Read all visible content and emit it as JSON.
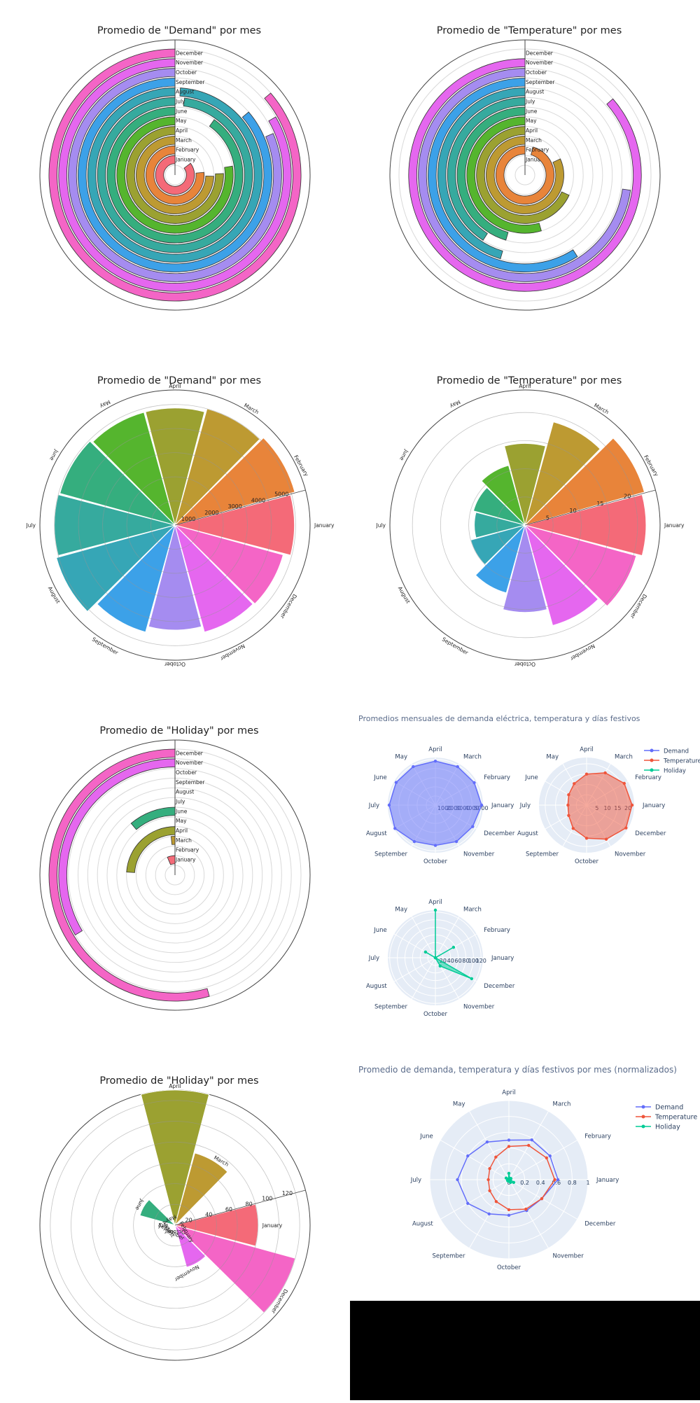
{
  "months": [
    "January",
    "February",
    "March",
    "April",
    "May",
    "June",
    "July",
    "August",
    "September",
    "October",
    "November",
    "December"
  ],
  "month_colors": [
    "#f46a78",
    "#e8843a",
    "#bd9a32",
    "#9ba131",
    "#55b52e",
    "#35ae7e",
    "#36aa9e",
    "#36a6b6",
    "#3ca1e8",
    "#a58cf0",
    "#e567ef",
    "#f465c6"
  ],
  "chart_data": [
    {
      "type": "bar",
      "variant": "polar-barpolar-angular",
      "title": "Promedio de \"Demand\" por mes",
      "categories": [
        "January",
        "February",
        "March",
        "April",
        "May",
        "June",
        "July",
        "August",
        "September",
        "October",
        "November",
        "December"
      ],
      "values": [
        4350,
        3900,
        3800,
        3850,
        3950,
        4600,
        5000,
        5050,
        4400,
        4150,
        4250,
        4400
      ],
      "radial_range": [
        0,
        5100
      ]
    },
    {
      "type": "bar",
      "variant": "polar-barpolar-angular",
      "title": "Promedio de \"Temperature\" por mes",
      "categories": [
        "January",
        "February",
        "March",
        "April",
        "May",
        "June",
        "July",
        "August",
        "September",
        "October",
        "November",
        "December"
      ],
      "values": [
        22,
        21,
        18,
        15,
        12,
        10,
        9,
        10,
        13,
        16,
        19,
        22
      ],
      "radial_range": [
        0,
        22
      ]
    },
    {
      "type": "bar",
      "variant": "polar-barpolar-radial",
      "title": "Promedio de \"Demand\" por mes",
      "categories": [
        "January",
        "February",
        "March",
        "April",
        "May",
        "June",
        "July",
        "August",
        "September",
        "October",
        "November",
        "December"
      ],
      "values": [
        4950,
        5150,
        5000,
        4850,
        4850,
        4950,
        5000,
        5100,
        4600,
        4350,
        4600,
        4650
      ],
      "radial_range": [
        0,
        5600
      ],
      "radial_ticks": [
        1000,
        2000,
        3000,
        4000,
        5000
      ]
    },
    {
      "type": "bar",
      "variant": "polar-barpolar-radial",
      "title": "Promedio de \"Temperature\" por mes",
      "categories": [
        "January",
        "February",
        "March",
        "April",
        "May",
        "June",
        "July",
        "August",
        "September",
        "October",
        "November",
        "December"
      ],
      "values": [
        21.5,
        22,
        19,
        14.5,
        11,
        9.5,
        9,
        10,
        12.5,
        15.5,
        18.5,
        20.5
      ],
      "radial_range": [
        0,
        24
      ],
      "radial_ticks": [
        5,
        10,
        15,
        20
      ]
    },
    {
      "type": "bar",
      "variant": "polar-barpolar-angular",
      "title": "Promedio de \"Holiday\" por mes",
      "categories": [
        "January",
        "February",
        "March",
        "April",
        "May",
        "June",
        "July",
        "August",
        "September",
        "October",
        "November",
        "December"
      ],
      "values": [
        8,
        0,
        2,
        30,
        0,
        14,
        0,
        0,
        0,
        0,
        42,
        68
      ],
      "radial_range": [
        0,
        125
      ]
    },
    {
      "type": "bar",
      "variant": "polar-barpolar-radial",
      "title": "Promedio de \"Holiday\" por mes",
      "categories": [
        "January",
        "February",
        "March",
        "April",
        "May",
        "June",
        "July",
        "August",
        "September",
        "October",
        "November",
        "December"
      ],
      "values": [
        80,
        0,
        72,
        130,
        0,
        35,
        0,
        0,
        0,
        0,
        42,
        120
      ],
      "radial_range": [
        0,
        130
      ],
      "radial_ticks": [
        20,
        40,
        60,
        80,
        100,
        120
      ]
    },
    {
      "type": "line",
      "variant": "polar-radar-subplots",
      "title": "Promedios mensuales de demanda eléctrica, temperatura y días festivos",
      "legend_position": "top-right",
      "theta": [
        "January",
        "February",
        "March",
        "April",
        "May",
        "June",
        "July",
        "August",
        "September",
        "October",
        "November",
        "December"
      ],
      "series": [
        {
          "name": "Demand",
          "color": "#636efa",
          "values": [
            5050,
            4900,
            4850,
            4800,
            4850,
            4950,
            5050,
            5100,
            4600,
            4400,
            4600,
            4700
          ],
          "radial_range": [
            0,
            5200
          ],
          "radial_ticks": [
            1000,
            2000,
            3000,
            4000,
            5000
          ]
        },
        {
          "name": "Temperature",
          "color": "#ef553b",
          "values": [
            22,
            21,
            18,
            15,
            12,
            10,
            9,
            10,
            13,
            16,
            19,
            22
          ],
          "radial_range": [
            0,
            23
          ],
          "radial_ticks": [
            5,
            10,
            15,
            20
          ]
        },
        {
          "name": "Holiday",
          "color": "#00cc96",
          "values": [
            0,
            55,
            0,
            125,
            0,
            30,
            0,
            0,
            0,
            0,
            25,
            110
          ],
          "radial_range": [
            0,
            125
          ],
          "radial_ticks": [
            20,
            40,
            60,
            80,
            100,
            120
          ]
        }
      ]
    },
    {
      "type": "line",
      "variant": "polar-radar",
      "title": "Promedio de demanda, temperatura y días festivos por mes (normalizados)",
      "legend_position": "top-right",
      "theta": [
        "January",
        "February",
        "March",
        "April",
        "May",
        "June",
        "July",
        "August",
        "September",
        "October",
        "November",
        "December"
      ],
      "radial_range": [
        0,
        1
      ],
      "radial_ticks": [
        0,
        0.2,
        0.4,
        0.6,
        0.8,
        1
      ],
      "series": [
        {
          "name": "Demand",
          "color": "#636efa",
          "values": [
            0.62,
            0.6,
            0.58,
            0.5,
            0.55,
            0.6,
            0.65,
            0.6,
            0.5,
            0.45,
            0.45,
            0.48
          ]
        },
        {
          "name": "Temperature",
          "color": "#ef553b",
          "values": [
            0.58,
            0.55,
            0.5,
            0.42,
            0.33,
            0.28,
            0.26,
            0.28,
            0.32,
            0.38,
            0.43,
            0.48
          ]
        },
        {
          "name": "Holiday",
          "color": "#00cc96",
          "values": [
            0.02,
            0.03,
            0.02,
            0.08,
            0.01,
            0.04,
            0.01,
            0.02,
            0.02,
            0.02,
            0.04,
            0.07
          ]
        }
      ]
    }
  ]
}
